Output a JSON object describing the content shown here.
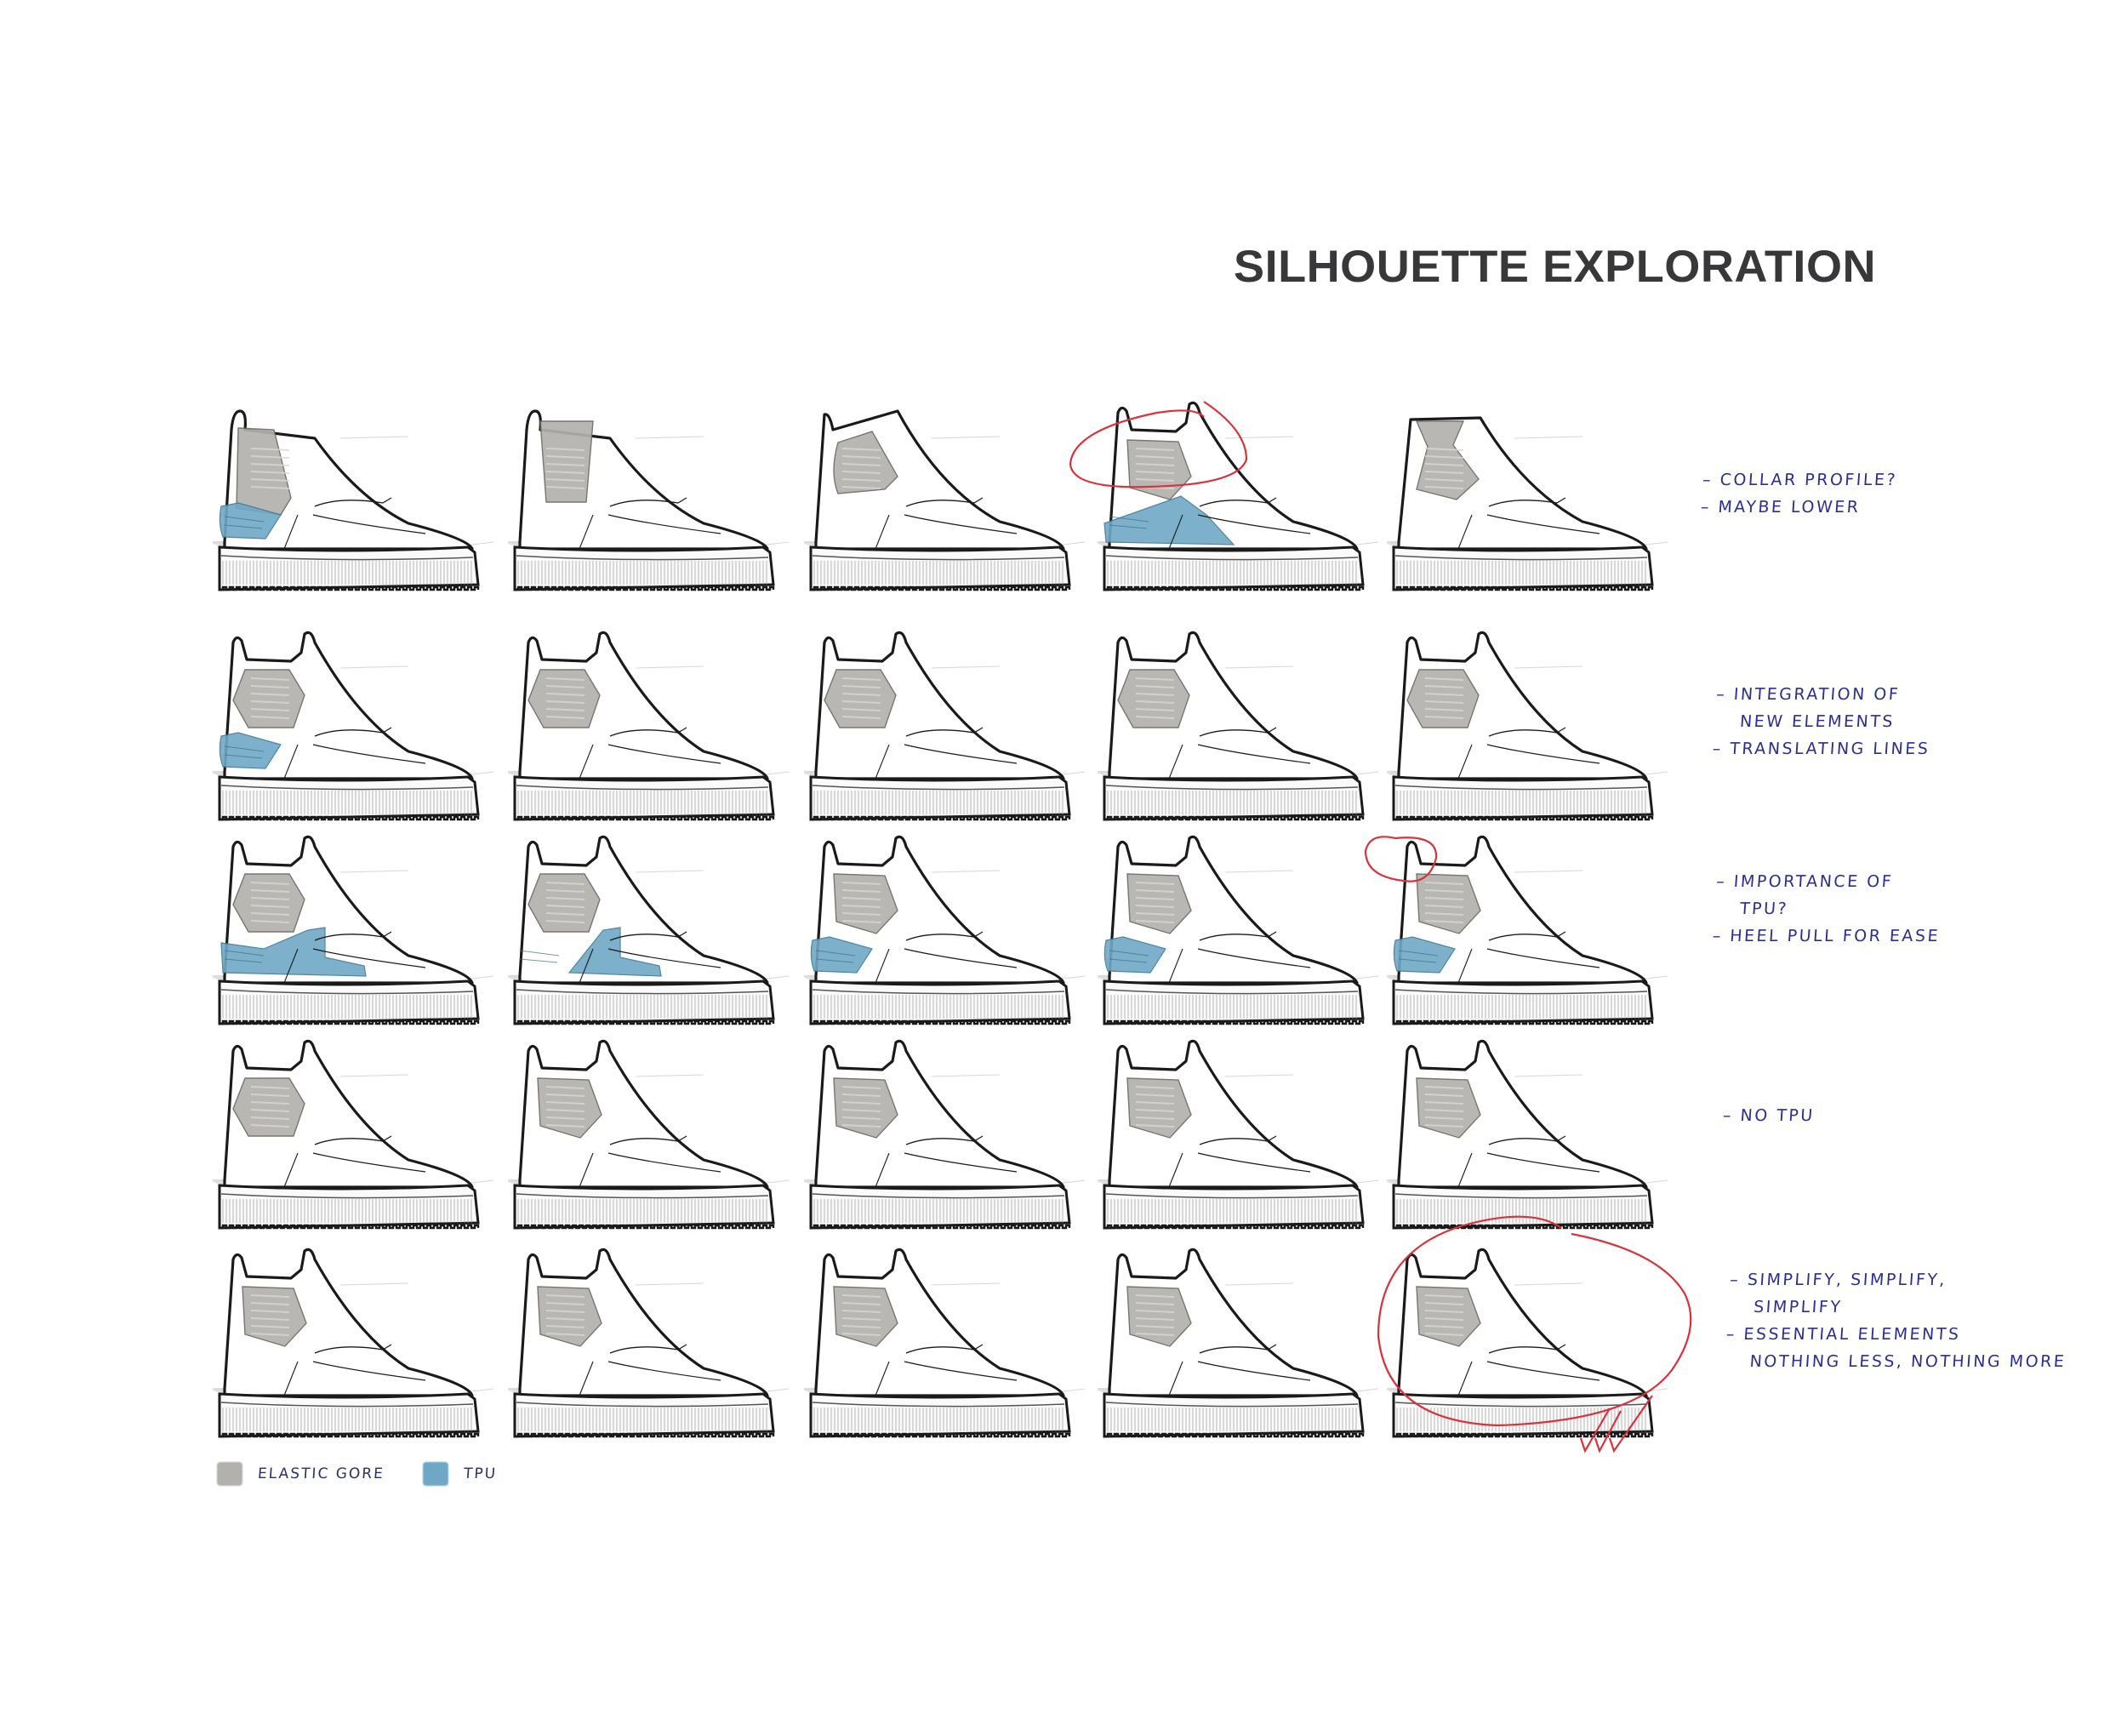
{
  "title": "SILHOUETTE EXPLORATION",
  "colors": {
    "title": "#38383a",
    "ink": "#1a1a1a",
    "elastic_gore": "#b3b1ae",
    "tpu": "#6fa8c6",
    "note_ink": "#2b2f8f",
    "markup_red": "#d8323c",
    "background": "#ffffff"
  },
  "legend": [
    {
      "label": "ELASTIC GORE",
      "swatch": "elastic_gore"
    },
    {
      "label": "TPU",
      "swatch": "tpu"
    }
  ],
  "rows": [
    {
      "notes": [
        "– COLLAR PROFILE?",
        "– MAYBE LOWER"
      ],
      "shoes": [
        {
          "collar": "high-pull",
          "gore": "rect-heel",
          "tpu": "heel-cup",
          "circled": false
        },
        {
          "collar": "twin-pull",
          "gore": "taper",
          "tpu": "none",
          "circled": false
        },
        {
          "collar": "sloped",
          "gore": "rounded",
          "tpu": "none",
          "circled": false
        },
        {
          "collar": "notched",
          "gore": "pentagon",
          "tpu": "quarter-wedge",
          "circled": true
        },
        {
          "collar": "flat",
          "gore": "hourglass",
          "tpu": "none",
          "circled": false
        }
      ]
    },
    {
      "notes": [
        "– INTEGRATION OF",
        "NEW ELEMENTS",
        "– TRANSLATING LINES"
      ],
      "shoes": [
        {
          "collar": "notched",
          "gore": "hexagon",
          "tpu": "heel-cup",
          "circled": false
        },
        {
          "collar": "notched",
          "gore": "hexagon",
          "tpu": "none",
          "circled": false
        },
        {
          "collar": "notched",
          "gore": "hexagon",
          "tpu": "none",
          "circled": false
        },
        {
          "collar": "notched",
          "gore": "hexagon",
          "tpu": "none",
          "circled": false
        },
        {
          "collar": "notched",
          "gore": "hexagon",
          "tpu": "none",
          "circled": false
        }
      ]
    },
    {
      "notes": [
        "– IMPORTANCE OF",
        "TPU?",
        "– HEEL PULL FOR EASE"
      ],
      "shoes": [
        {
          "collar": "notched",
          "gore": "hexagon",
          "tpu": "heel-and-strap",
          "circled": false
        },
        {
          "collar": "notched",
          "gore": "hexagon",
          "tpu": "strap",
          "circled": false
        },
        {
          "collar": "notched",
          "gore": "pentagon",
          "tpu": "heel-cup",
          "circled": false
        },
        {
          "collar": "notched",
          "gore": "pentagon",
          "tpu": "heel-cup",
          "circled": false
        },
        {
          "collar": "heel-pull",
          "gore": "pentagon",
          "tpu": "heel-cup",
          "circled": true
        }
      ]
    },
    {
      "notes": [
        "– NO TPU"
      ],
      "shoes": [
        {
          "collar": "notched",
          "gore": "hexagon",
          "tpu": "none",
          "circled": false
        },
        {
          "collar": "heel-pull",
          "gore": "pentagon",
          "tpu": "none",
          "circled": false
        },
        {
          "collar": "notched",
          "gore": "pentagon",
          "tpu": "none",
          "circled": false
        },
        {
          "collar": "heel-pull",
          "gore": "pentagon",
          "tpu": "none",
          "circled": false
        },
        {
          "collar": "heel-pull",
          "gore": "pentagon",
          "tpu": "none",
          "circled": false
        }
      ]
    },
    {
      "notes": [
        "– SIMPLIFY, SIMPLIFY,",
        "SIMPLIFY",
        "– ESSENTIAL ELEMENTS",
        "NOTHING LESS, NOTHING MORE"
      ],
      "shoes": [
        {
          "collar": "heel-pull",
          "gore": "pentagon",
          "tpu": "none",
          "circled": false
        },
        {
          "collar": "heel-pull",
          "gore": "pentagon",
          "tpu": "none",
          "circled": false
        },
        {
          "collar": "heel-pull",
          "gore": "pentagon",
          "tpu": "none",
          "circled": false
        },
        {
          "collar": "heel-pull",
          "gore": "pentagon",
          "tpu": "none",
          "circled": false
        },
        {
          "collar": "heel-pull",
          "gore": "pentagon",
          "tpu": "none",
          "circled": true,
          "checkmarks": 3
        }
      ]
    }
  ]
}
